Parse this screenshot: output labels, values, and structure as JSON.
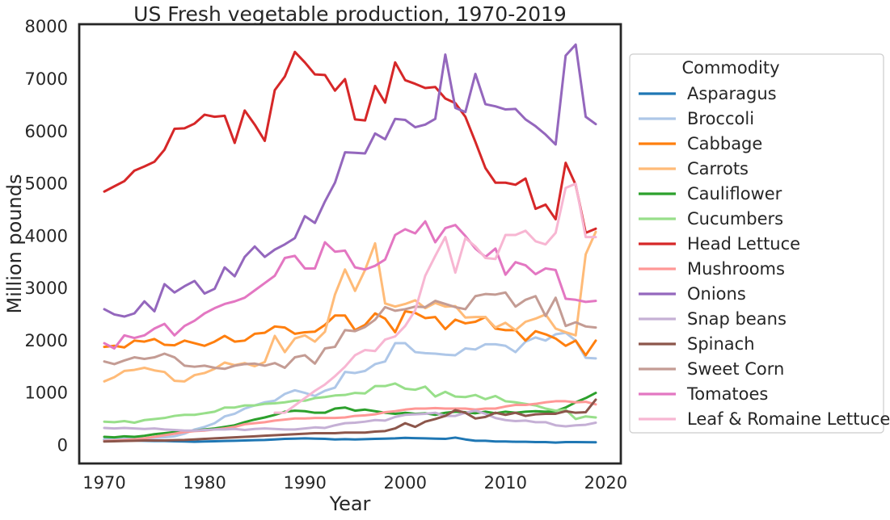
{
  "chart_data": {
    "type": "line",
    "title": "US Fresh vegetable production, 1970-2019",
    "xlabel": "Year",
    "ylabel": "Million pounds",
    "xlim": [
      1967.5,
      2021.5
    ],
    "ylim": [
      -350,
      8050
    ],
    "xticks": [
      1970,
      1980,
      1990,
      2000,
      2010,
      2020
    ],
    "yticks": [
      0,
      1000,
      2000,
      3000,
      4000,
      5000,
      6000,
      7000,
      8000
    ],
    "grid": false,
    "legend": {
      "title": "Commodity",
      "placement": "outside-right"
    },
    "x": [
      1970,
      1971,
      1972,
      1973,
      1974,
      1975,
      1976,
      1977,
      1978,
      1979,
      1980,
      1981,
      1982,
      1983,
      1984,
      1985,
      1986,
      1987,
      1988,
      1989,
      1990,
      1991,
      1992,
      1993,
      1994,
      1995,
      1996,
      1997,
      1998,
      1999,
      2000,
      2001,
      2002,
      2003,
      2004,
      2005,
      2006,
      2007,
      2008,
      2009,
      2010,
      2011,
      2012,
      2013,
      2014,
      2015,
      2016,
      2017,
      2018,
      2019
    ],
    "series": [
      {
        "name": "Asparagus",
        "color": "#1f77b4",
        "values": [
          100,
          100,
          100,
          90,
          85,
          80,
          80,
          75,
          70,
          65,
          70,
          75,
          80,
          85,
          90,
          95,
          100,
          110,
          120,
          125,
          130,
          125,
          120,
          110,
          115,
          110,
          115,
          120,
          125,
          130,
          140,
          135,
          130,
          125,
          120,
          145,
          110,
          85,
          85,
          70,
          70,
          65,
          65,
          60,
          60,
          50,
          60,
          60,
          58,
          55
        ]
      },
      {
        "name": "Broccoli",
        "color": "#aec7e8",
        "values": [
          120,
          120,
          120,
          125,
          130,
          140,
          150,
          170,
          220,
          300,
          350,
          420,
          550,
          600,
          700,
          760,
          820,
          850,
          980,
          1050,
          1000,
          940,
          1040,
          1100,
          1400,
          1380,
          1420,
          1550,
          1600,
          1950,
          1950,
          1780,
          1760,
          1750,
          1730,
          1720,
          1850,
          1830,
          1930,
          1930,
          1900,
          1780,
          1980,
          2060,
          2000,
          2120,
          2150,
          2000,
          1670,
          1660
        ]
      },
      {
        "name": "Cabbage",
        "color": "#ff7f0e",
        "values": [
          1880,
          1900,
          1870,
          2000,
          1980,
          2030,
          1920,
          1910,
          2000,
          1950,
          1900,
          1980,
          2090,
          1980,
          2000,
          2130,
          2150,
          2270,
          2250,
          2130,
          2160,
          2170,
          2300,
          2480,
          2480,
          2200,
          2300,
          2520,
          2420,
          2160,
          2560,
          2530,
          2430,
          2450,
          2220,
          2400,
          2330,
          2360,
          2450,
          2230,
          2200,
          2200,
          2000,
          2180,
          2120,
          2040,
          1900,
          2000,
          1720,
          2000
        ]
      },
      {
        "name": "Carrots",
        "color": "#ffbb78",
        "values": [
          1220,
          1300,
          1420,
          1440,
          1480,
          1430,
          1400,
          1230,
          1220,
          1340,
          1380,
          1460,
          1580,
          1530,
          1570,
          1510,
          1590,
          2090,
          1780,
          2040,
          2100,
          1980,
          2170,
          2880,
          3360,
          2950,
          3350,
          3860,
          2710,
          2650,
          2700,
          2770,
          2620,
          2720,
          2650,
          2660,
          2440,
          2450,
          2450,
          2250,
          2340,
          2200,
          2360,
          2420,
          2500,
          2230,
          2160,
          2100,
          3650,
          4080
        ]
      },
      {
        "name": "Cauliflower",
        "color": "#2ca02c",
        "values": [
          160,
          150,
          170,
          160,
          180,
          210,
          230,
          250,
          260,
          280,
          300,
          320,
          350,
          380,
          440,
          490,
          530,
          580,
          640,
          660,
          650,
          620,
          620,
          700,
          720,
          660,
          680,
          650,
          620,
          600,
          620,
          600,
          610,
          580,
          620,
          640,
          630,
          610,
          640,
          610,
          640,
          620,
          640,
          650,
          640,
          650,
          720,
          820,
          900,
          1000
        ]
      },
      {
        "name": "Cucumbers",
        "color": "#98df8a",
        "values": [
          450,
          440,
          460,
          430,
          480,
          500,
          520,
          560,
          580,
          580,
          610,
          640,
          720,
          720,
          760,
          760,
          790,
          800,
          820,
          850,
          850,
          900,
          920,
          950,
          960,
          1000,
          990,
          1130,
          1130,
          1180,
          1080,
          1060,
          1120,
          930,
          1020,
          930,
          920,
          960,
          880,
          940,
          840,
          820,
          790,
          760,
          700,
          660,
          680,
          500,
          550,
          530
        ]
      },
      {
        "name": "Head Lettuce",
        "color": "#d62728",
        "values": [
          4850,
          4950,
          5050,
          5250,
          5330,
          5420,
          5650,
          6050,
          6060,
          6150,
          6320,
          6280,
          6300,
          5780,
          6400,
          6130,
          5820,
          6790,
          7050,
          7520,
          7320,
          7090,
          7080,
          6780,
          7000,
          6230,
          6210,
          6870,
          6550,
          7320,
          6980,
          6910,
          6830,
          6850,
          6630,
          6540,
          6280,
          5800,
          5300,
          5020,
          5020,
          4980,
          5100,
          4520,
          4600,
          4320,
          5400,
          4980,
          4060,
          4140
        ]
      },
      {
        "name": "Mushrooms",
        "color": "#ff9896",
        "values": [
          80,
          90,
          100,
          110,
          130,
          160,
          190,
          220,
          250,
          270,
          280,
          300,
          320,
          350,
          400,
          420,
          440,
          470,
          490,
          510,
          510,
          520,
          520,
          520,
          530,
          560,
          570,
          590,
          630,
          650,
          680,
          700,
          700,
          710,
          700,
          700,
          700,
          680,
          700,
          700,
          740,
          770,
          770,
          790,
          820,
          840,
          840,
          820,
          830,
          780
        ]
      },
      {
        "name": "Onions",
        "color": "#9467bd",
        "values": [
          2600,
          2500,
          2460,
          2520,
          2750,
          2560,
          3080,
          2920,
          3040,
          3140,
          2900,
          2990,
          3400,
          3230,
          3600,
          3800,
          3600,
          3740,
          3840,
          3960,
          4380,
          4250,
          4660,
          5020,
          5600,
          5590,
          5580,
          5960,
          5850,
          6240,
          6220,
          6080,
          6130,
          6240,
          7470,
          6450,
          6370,
          7100,
          6520,
          6480,
          6420,
          6430,
          6230,
          6100,
          5940,
          5750,
          7450,
          7660,
          6280,
          6140
        ]
      },
      {
        "name": "Snap beans",
        "color": "#c5b0d5",
        "values": [
          330,
          320,
          330,
          320,
          310,
          320,
          300,
          290,
          280,
          280,
          290,
          300,
          300,
          310,
          290,
          310,
          320,
          310,
          300,
          300,
          320,
          340,
          330,
          380,
          420,
          430,
          450,
          480,
          470,
          540,
          580,
          590,
          600,
          620,
          560,
          560,
          620,
          660,
          600,
          520,
          480,
          460,
          470,
          440,
          440,
          380,
          360,
          380,
          390,
          430
        ]
      },
      {
        "name": "Spinach",
        "color": "#8c564b",
        "values": [
          70,
          75,
          80,
          85,
          90,
          90,
          90,
          95,
          100,
          110,
          120,
          130,
          140,
          150,
          160,
          170,
          180,
          190,
          200,
          210,
          220,
          230,
          230,
          230,
          240,
          240,
          240,
          260,
          270,
          320,
          420,
          350,
          450,
          500,
          560,
          670,
          620,
          510,
          540,
          620,
          580,
          620,
          560,
          590,
          600,
          600,
          650,
          620,
          630,
          870
        ]
      },
      {
        "name": "Sweet Corn",
        "color": "#c49c94",
        "values": [
          1600,
          1550,
          1620,
          1680,
          1650,
          1680,
          1750,
          1680,
          1520,
          1500,
          1520,
          1480,
          1460,
          1520,
          1550,
          1560,
          1520,
          1570,
          1480,
          1680,
          1720,
          1560,
          1850,
          1880,
          2200,
          2180,
          2260,
          2400,
          2640,
          2570,
          2600,
          2650,
          2640,
          2760,
          2700,
          2640,
          2600,
          2850,
          2890,
          2880,
          2920,
          2650,
          2780,
          2850,
          2470,
          2820,
          2280,
          2350,
          2270,
          2250
        ]
      },
      {
        "name": "Tomatoes",
        "color": "#e377c2",
        "values": [
          1950,
          1850,
          2100,
          2050,
          2100,
          2230,
          2320,
          2100,
          2280,
          2380,
          2520,
          2620,
          2700,
          2750,
          2820,
          2960,
          3100,
          3240,
          3580,
          3620,
          3380,
          3380,
          3880,
          3700,
          3720,
          3400,
          3360,
          3430,
          3550,
          4020,
          4130,
          4050,
          4280,
          3880,
          4150,
          4210,
          4000,
          3760,
          3600,
          3760,
          3260,
          3500,
          3440,
          3270,
          3380,
          3350,
          2800,
          2780,
          2740,
          2760
        ]
      },
      {
        "name": "Leaf & Romaine Lettuce",
        "color": "#f7b6d2",
        "values": [
          null,
          null,
          null,
          null,
          null,
          null,
          null,
          null,
          null,
          null,
          null,
          null,
          null,
          null,
          null,
          null,
          null,
          620,
          620,
          760,
          900,
          1040,
          1160,
          1320,
          1500,
          1720,
          1820,
          1800,
          2020,
          2080,
          2280,
          2580,
          3240,
          3620,
          3980,
          3300,
          3960,
          3800,
          3580,
          3560,
          4020,
          4020,
          4100,
          3900,
          3840,
          4060,
          4920,
          5000,
          3980,
          3980
        ]
      }
    ]
  }
}
